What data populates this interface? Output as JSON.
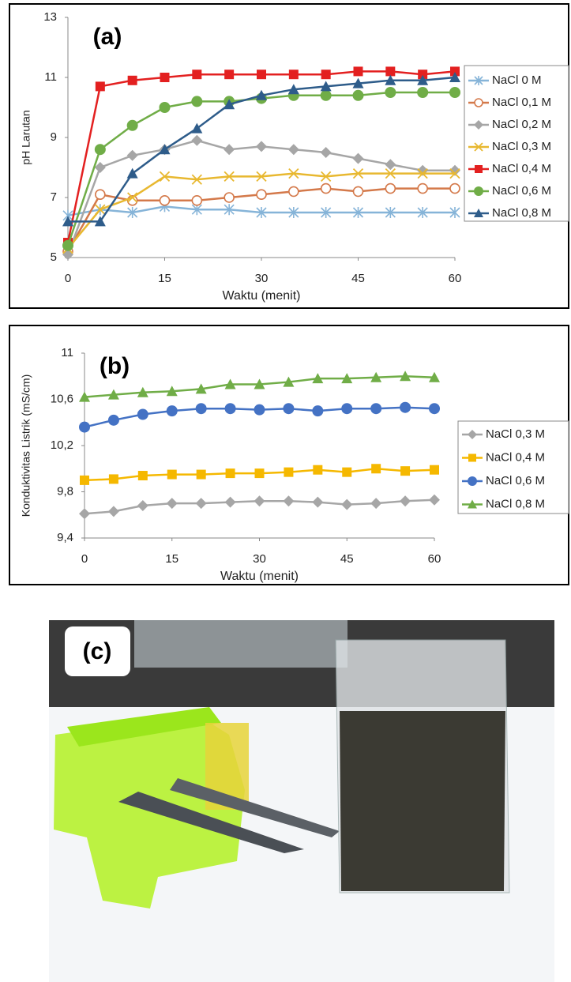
{
  "chart_data": [
    {
      "type": "line",
      "label": "(a)",
      "x_label": "Waktu (menit)",
      "y_label": "pH Larutan",
      "x": [
        0,
        5,
        10,
        15,
        20,
        25,
        30,
        35,
        40,
        45,
        50,
        55,
        60
      ],
      "xlim": [
        0,
        60
      ],
      "xticks": [
        0,
        15,
        30,
        45,
        60
      ],
      "ylim": [
        5,
        13
      ],
      "yticks": [
        5,
        7,
        9,
        11,
        13
      ],
      "grid": false,
      "legend": "right",
      "series": [
        {
          "name": "NaCl 0 M",
          "color": "#86b4d8",
          "marker": "asterisk",
          "values": [
            6.4,
            6.6,
            6.5,
            6.7,
            6.6,
            6.6,
            6.5,
            6.5,
            6.5,
            6.5,
            6.5,
            6.5,
            6.5
          ]
        },
        {
          "name": "NaCl 0,1 M",
          "color": "#d4794a",
          "marker": "circle-open",
          "values": [
            5.2,
            7.1,
            6.9,
            6.9,
            6.9,
            7.0,
            7.1,
            7.2,
            7.3,
            7.2,
            7.3,
            7.3,
            7.3
          ]
        },
        {
          "name": "NaCl 0,2 M",
          "color": "#a6a6a6",
          "marker": "diamond",
          "values": [
            5.1,
            8.0,
            8.4,
            8.6,
            8.9,
            8.6,
            8.7,
            8.6,
            8.5,
            8.3,
            8.1,
            7.9,
            7.9
          ]
        },
        {
          "name": "NaCl 0,3 M",
          "color": "#e8b830",
          "marker": "x",
          "values": [
            5.3,
            6.6,
            7.0,
            7.7,
            7.6,
            7.7,
            7.7,
            7.8,
            7.7,
            7.8,
            7.8,
            7.8,
            7.8
          ]
        },
        {
          "name": "NaCl 0,4 M",
          "color": "#e32020",
          "marker": "square",
          "values": [
            5.5,
            10.7,
            10.9,
            11.0,
            11.1,
            11.1,
            11.1,
            11.1,
            11.1,
            11.2,
            11.2,
            11.1,
            11.2
          ]
        },
        {
          "name": "NaCl 0,6 M",
          "color": "#70ad47",
          "marker": "circle",
          "values": [
            5.4,
            8.6,
            9.4,
            10.0,
            10.2,
            10.2,
            10.3,
            10.4,
            10.4,
            10.4,
            10.5,
            10.5,
            10.5
          ]
        },
        {
          "name": "NaCl 0,8 M",
          "color": "#2e5c8a",
          "marker": "triangle",
          "values": [
            6.2,
            6.2,
            7.8,
            8.6,
            9.3,
            10.1,
            10.4,
            10.6,
            10.7,
            10.8,
            10.9,
            10.9,
            11.0
          ]
        }
      ]
    },
    {
      "type": "line",
      "label": "(b)",
      "x_label": "Waktu (menit)",
      "y_label": "Konduktivitas Listrik (mS/cm)",
      "x": [
        0,
        5,
        10,
        15,
        20,
        25,
        30,
        35,
        40,
        45,
        50,
        55,
        60
      ],
      "xlim": [
        0,
        60
      ],
      "xticks": [
        0,
        15,
        30,
        45,
        60
      ],
      "ylim": [
        9.4,
        11
      ],
      "yticks": [
        {
          "value": 9.4,
          "label": "9,4"
        },
        {
          "value": 9.8,
          "label": "9,8"
        },
        {
          "value": 10.2,
          "label": "10,2"
        },
        {
          "value": 10.6,
          "label": "10,6"
        },
        11
      ],
      "grid": false,
      "legend": "right",
      "series": [
        {
          "name": "NaCl 0,3 M",
          "color": "#a6a6a6",
          "marker": "diamond",
          "values": [
            9.61,
            9.63,
            9.68,
            9.7,
            9.7,
            9.71,
            9.72,
            9.72,
            9.71,
            9.69,
            9.7,
            9.72,
            9.73
          ]
        },
        {
          "name": "NaCl 0,4 M",
          "color": "#f5b800",
          "marker": "square",
          "values": [
            9.9,
            9.91,
            9.94,
            9.95,
            9.95,
            9.96,
            9.96,
            9.97,
            9.99,
            9.97,
            10.0,
            9.98,
            9.99
          ]
        },
        {
          "name": "NaCl 0,6 M",
          "color": "#4472c4",
          "marker": "circle",
          "values": [
            10.36,
            10.42,
            10.47,
            10.5,
            10.52,
            10.52,
            10.51,
            10.52,
            10.5,
            10.52,
            10.52,
            10.53,
            10.52
          ]
        },
        {
          "name": "NaCl 0,8 M",
          "color": "#70ad47",
          "marker": "triangle",
          "values": [
            10.62,
            10.64,
            10.66,
            10.67,
            10.69,
            10.73,
            10.73,
            10.75,
            10.78,
            10.78,
            10.79,
            10.8,
            10.79
          ]
        }
      ]
    }
  ],
  "panel_c": {
    "label": "(c)"
  }
}
